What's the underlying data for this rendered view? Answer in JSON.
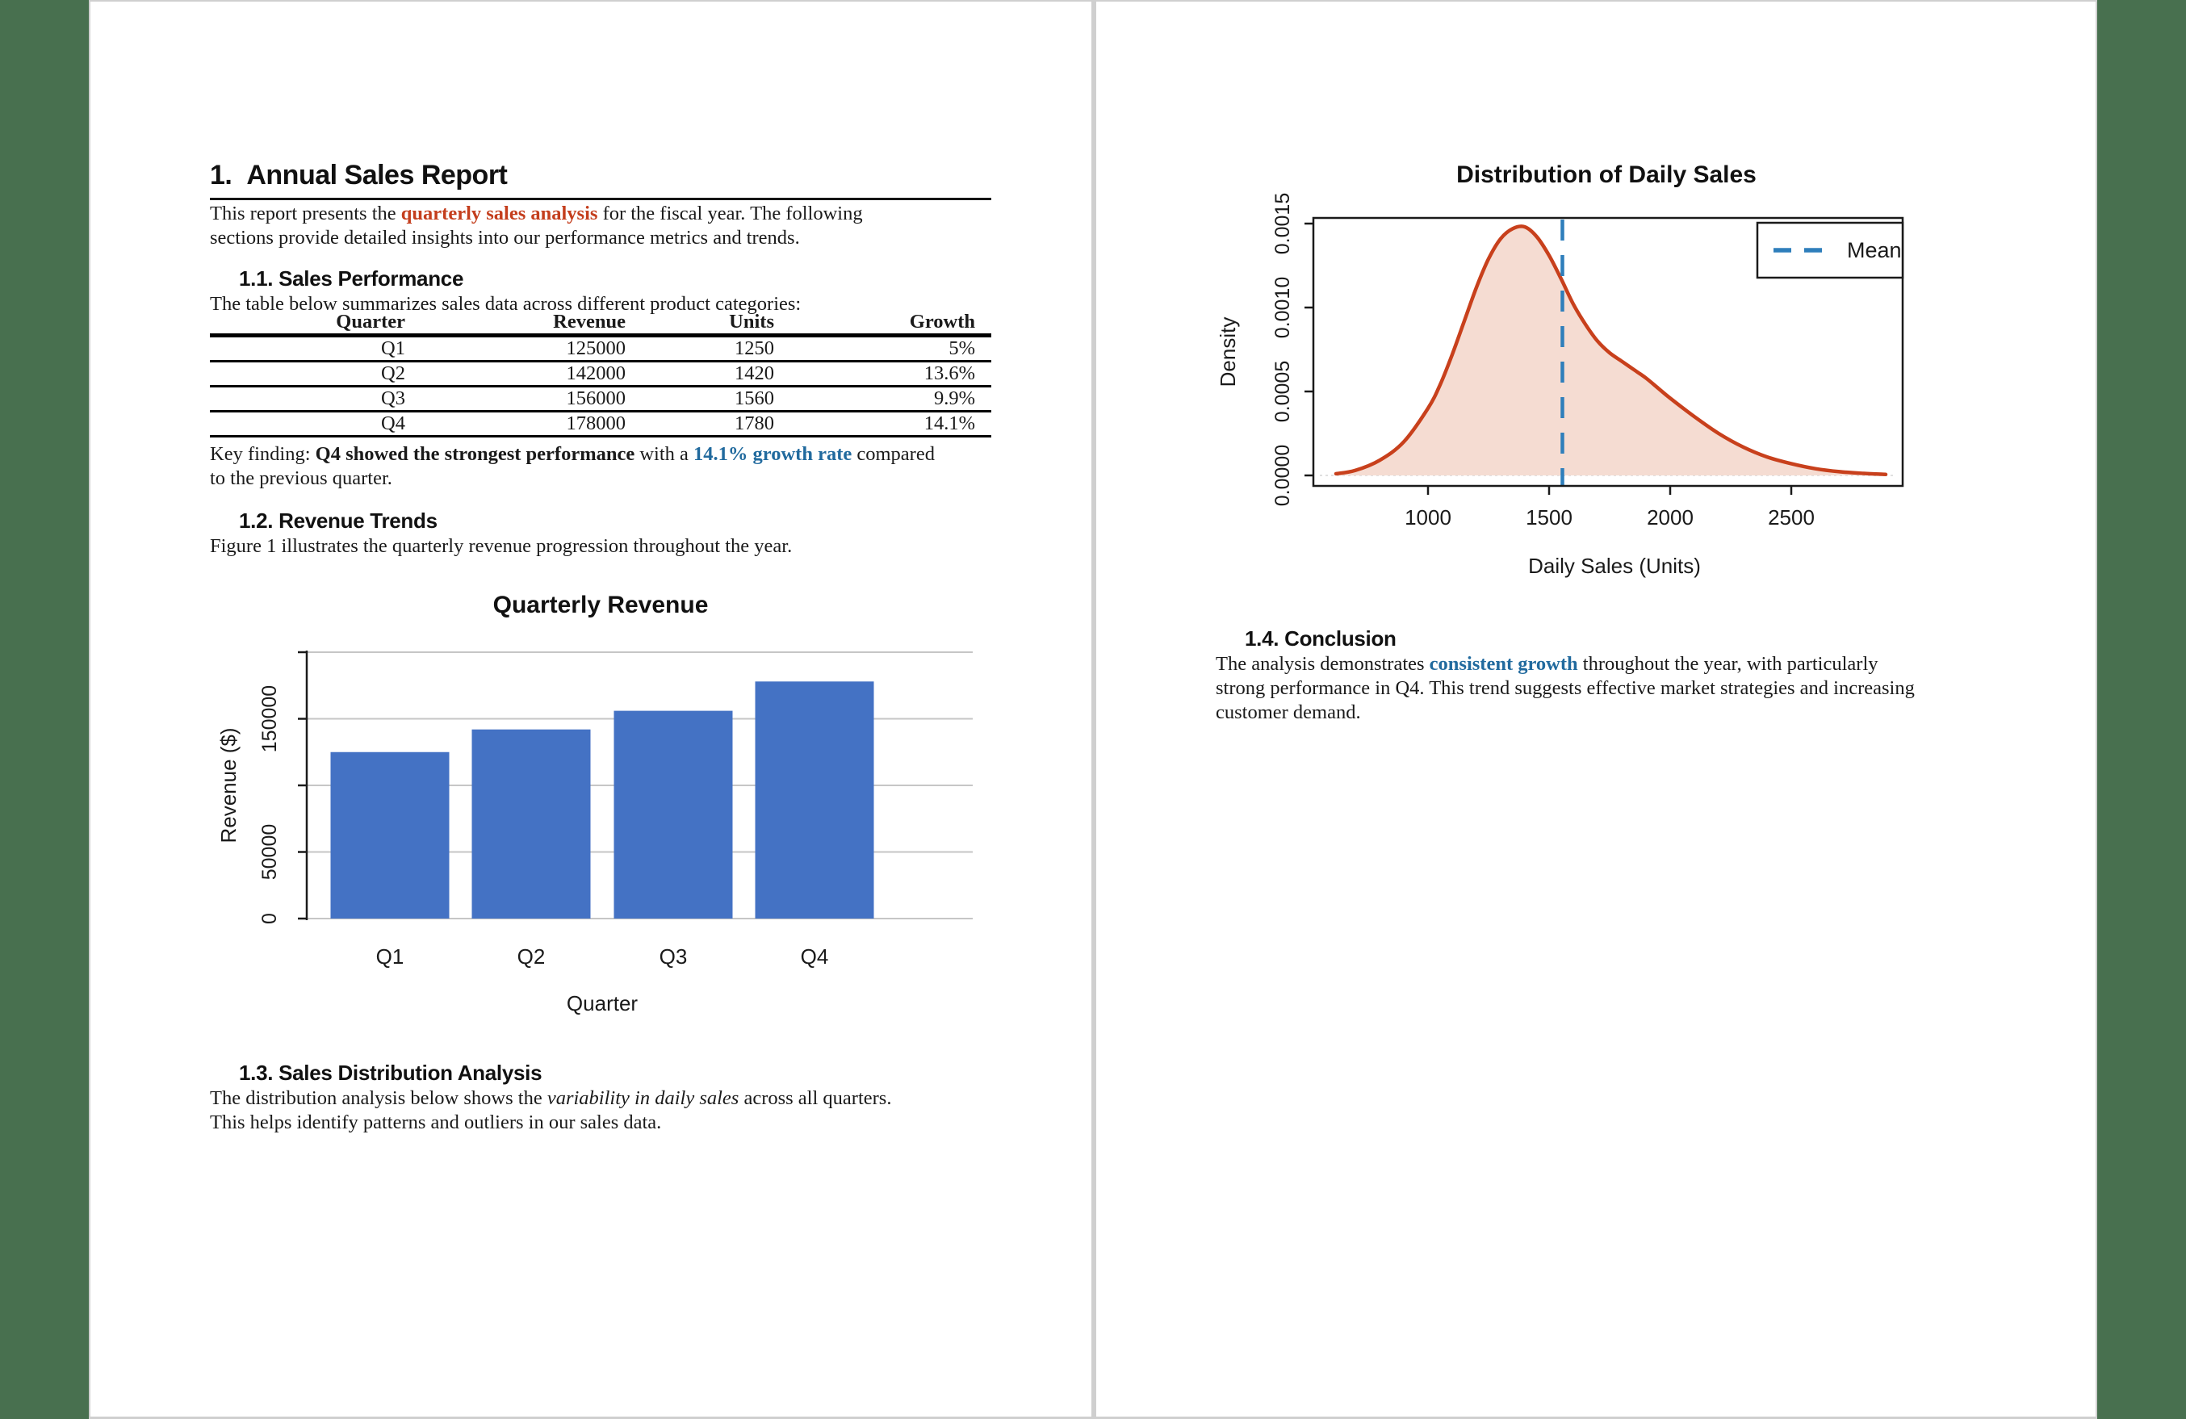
{
  "colors": {
    "sidebar_green": "#48704F",
    "accent_red": "#C43E1D",
    "accent_blue": "#216A9E",
    "bar_blue": "#4472C4",
    "curve_red": "#C8401C",
    "curve_fill": "#F5DCD2",
    "mean_blue": "#2E7EBB"
  },
  "page1": {
    "title": {
      "number": "1.",
      "label": "Annual Sales Report"
    },
    "intro": [
      [
        {
          "t": "This report presents the "
        },
        {
          "t": "quarterly sales analysis",
          "s": "red"
        },
        {
          "t": " for the fiscal year. The following"
        }
      ],
      [
        {
          "t": "sections provide detailed insights into our performance metrics and trends."
        }
      ]
    ],
    "sec11": {
      "heading": "1.1. Sales Performance",
      "lead": "The table below summarizes sales data across different product categories:"
    },
    "table": {
      "headers": [
        "Quarter",
        "Revenue",
        "Units",
        "Growth"
      ],
      "rows": [
        [
          "Q1",
          "125000",
          "1250",
          "5%"
        ],
        [
          "Q2",
          "142000",
          "1420",
          "13.6%"
        ],
        [
          "Q3",
          "156000",
          "1560",
          "9.9%"
        ],
        [
          "Q4",
          "178000",
          "1780",
          "14.1%"
        ]
      ]
    },
    "key_finding": [
      [
        {
          "t": "Key finding: "
        },
        {
          "t": "Q4 showed the strongest performance",
          "s": "b"
        },
        {
          "t": " with a "
        },
        {
          "t": "14.1% growth rate",
          "s": "blue"
        },
        {
          "t": " compared"
        }
      ],
      [
        {
          "t": "to the previous quarter."
        }
      ]
    ],
    "sec12": {
      "heading": "1.2. Revenue Trends",
      "lead": "Figure 1 illustrates the quarterly revenue progression throughout the year."
    },
    "sec13": {
      "heading": "1.3. Sales Distribution Analysis",
      "lines": [
        [
          {
            "t": "The distribution analysis below shows the "
          },
          {
            "t": "variability in daily sales",
            "s": "i"
          },
          {
            "t": " across all quarters."
          }
        ],
        [
          {
            "t": "This helps identify patterns and outliers in our sales data."
          }
        ]
      ]
    }
  },
  "page2": {
    "sec14": {
      "heading": "1.4. Conclusion",
      "lines": [
        [
          {
            "t": "The analysis demonstrates "
          },
          {
            "t": "consistent growth",
            "s": "blue"
          },
          {
            "t": " throughout the year, with particularly"
          }
        ],
        [
          {
            "t": "strong performance in Q4. This trend suggests effective market strategies and increasing"
          }
        ],
        [
          {
            "t": "customer demand."
          }
        ]
      ]
    }
  },
  "chart_data": [
    {
      "type": "bar",
      "title": "Quarterly Revenue",
      "categories": [
        "Q1",
        "Q2",
        "Q3",
        "Q4"
      ],
      "values": [
        125000,
        142000,
        156000,
        178000
      ],
      "xlabel": "Quarter",
      "ylabel": "Revenue ($)",
      "ylim": [
        0,
        200000
      ],
      "gridline_values": [
        0,
        50000,
        100000,
        150000,
        200000
      ],
      "ytick_labels": [
        {
          "v": 0,
          "label": "0"
        },
        {
          "v": 50000,
          "label": "50000"
        },
        {
          "v": 150000,
          "label": "150000"
        }
      ],
      "grid": true,
      "bar_color": "#4472C4"
    },
    {
      "type": "area",
      "title": "Distribution of Daily Sales",
      "xlabel": "Daily Sales (Units)",
      "ylabel": "Density",
      "xlim": [
        620,
        2890
      ],
      "ylim": [
        0,
        0.0015
      ],
      "xticks": [
        1000,
        1500,
        2000,
        2500
      ],
      "ytick_labels": [
        {
          "v": 0.0,
          "label": "0.0000"
        },
        {
          "v": 0.0005,
          "label": "0.0005"
        },
        {
          "v": 0.001,
          "label": "0.0010"
        },
        {
          "v": 0.0015,
          "label": "0.0015"
        }
      ],
      "mean": 1555,
      "legend": {
        "label": "Mean",
        "position": "top-right"
      },
      "curve_color": "#C8401C",
      "curve_fill": "#F5DCD2",
      "mean_color": "#2E7EBB",
      "curve": [
        [
          620,
          1e-05
        ],
        [
          700,
          3e-05
        ],
        [
          800,
          9e-05
        ],
        [
          900,
          0.0002
        ],
        [
          1000,
          0.0004
        ],
        [
          1050,
          0.00054
        ],
        [
          1100,
          0.00072
        ],
        [
          1150,
          0.00092
        ],
        [
          1200,
          0.00112
        ],
        [
          1250,
          0.00129
        ],
        [
          1300,
          0.00141
        ],
        [
          1350,
          0.00147
        ],
        [
          1400,
          0.00148
        ],
        [
          1450,
          0.00142
        ],
        [
          1500,
          0.00131
        ],
        [
          1550,
          0.00117
        ],
        [
          1600,
          0.00102
        ],
        [
          1650,
          0.0009
        ],
        [
          1700,
          0.0008
        ],
        [
          1750,
          0.00073
        ],
        [
          1800,
          0.00068
        ],
        [
          1850,
          0.00063
        ],
        [
          1900,
          0.00058
        ],
        [
          1950,
          0.00052
        ],
        [
          2000,
          0.00046
        ],
        [
          2100,
          0.00035
        ],
        [
          2200,
          0.00025
        ],
        [
          2300,
          0.00017
        ],
        [
          2400,
          0.00011
        ],
        [
          2500,
          7e-05
        ],
        [
          2600,
          4e-05
        ],
        [
          2700,
          2.2e-05
        ],
        [
          2800,
          1.2e-05
        ],
        [
          2890,
          6e-06
        ]
      ]
    }
  ]
}
